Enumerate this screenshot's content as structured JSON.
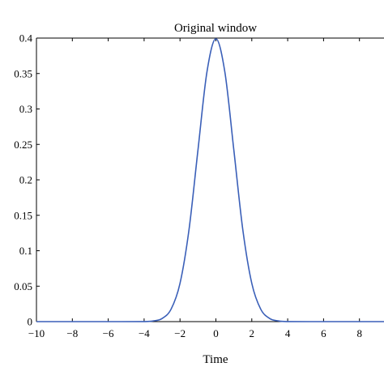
{
  "chart_data": {
    "type": "line",
    "title": "Original window",
    "xlabel": "Time",
    "ylabel": "",
    "xlim": [
      -10,
      10
    ],
    "ylim": [
      0,
      0.4
    ],
    "grid": false,
    "x_ticks": [
      -10,
      -8,
      -6,
      -4,
      -2,
      0,
      2,
      4,
      6,
      8
    ],
    "x_tick_labels": [
      "−10",
      "−8",
      "−6",
      "−4",
      "−2",
      "0",
      "2",
      "4",
      "6",
      "8"
    ],
    "y_ticks": [
      0,
      0.05,
      0.1,
      0.15,
      0.2,
      0.25,
      0.3,
      0.35,
      0.4
    ],
    "y_tick_labels": [
      "0",
      "0.05",
      "0.1",
      "0.15",
      "0.2",
      "0.25",
      "0.3",
      "0.35",
      "0.4"
    ],
    "series": [
      {
        "color": "#3a5fb8",
        "x": [
          -10,
          -8,
          -6,
          -4,
          -3.5,
          -3,
          -2.5,
          -2,
          -1.5,
          -1,
          -0.5,
          0,
          0.5,
          1,
          1.5,
          2,
          2.5,
          3,
          3.5,
          4,
          6,
          8,
          10
        ],
        "y": [
          0,
          0,
          0,
          0.0001,
          0.0009,
          0.0044,
          0.0175,
          0.054,
          0.1295,
          0.242,
          0.352,
          0.3989,
          0.352,
          0.242,
          0.1295,
          0.054,
          0.0175,
          0.0044,
          0.0009,
          0.0001,
          0,
          0,
          0
        ]
      }
    ]
  }
}
